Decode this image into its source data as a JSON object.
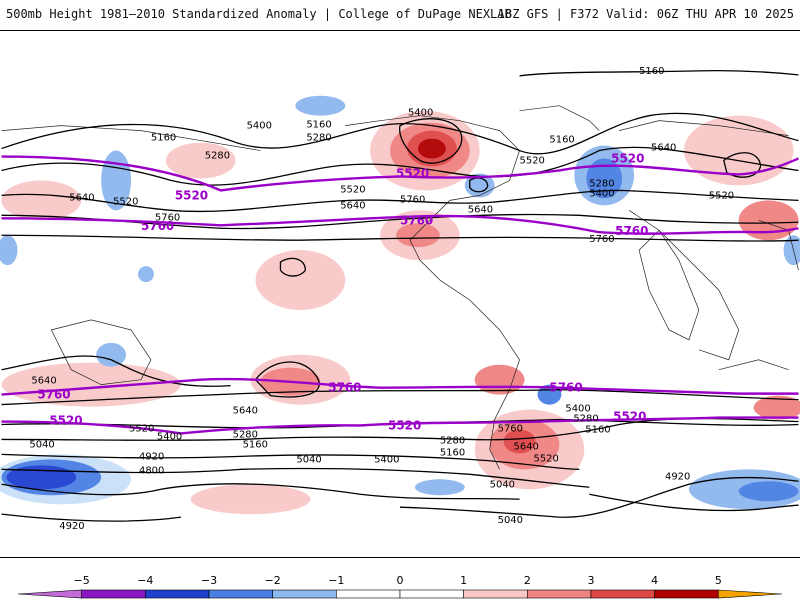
{
  "header": {
    "left_title": "500mb Height 1981–2010 Standardized Anomaly | College of DuPage NEXLAB",
    "right_title": "18Z GFS | F372 Valid: 06Z THU APR 10 2025"
  },
  "map": {
    "projection": "global-cylindrical",
    "contour_unit": "dam",
    "black_contour_labels": [
      "5160",
      "5280",
      "5400",
      "5520",
      "5640",
      "5760",
      "5040",
      "4920",
      "4800"
    ],
    "highlight_contours": [
      "5520",
      "5760"
    ],
    "highlight_color": "#9b00c9",
    "anomaly_colors": {
      "pos_1": "#f9c8c8",
      "pos_2": "#f08282",
      "pos_3": "#e04747",
      "pos_4": "#b00000",
      "pos_5": "#f6a300",
      "neg_1": "#c9e0f8",
      "neg_2": "#8db7ef",
      "neg_3": "#4a7fe3",
      "neg_4": "#1f3fcf",
      "neg_5": "#8c17c5"
    }
  },
  "colorbar": {
    "ticks": [
      "−5",
      "−4",
      "−3",
      "−2",
      "−1",
      "0",
      "1",
      "2",
      "3",
      "4",
      "5"
    ],
    "colors": [
      "#c36bd8",
      "#8c17c5",
      "#1f3fcf",
      "#4a7fe3",
      "#8db7ef",
      "#ffffff",
      "#ffffff",
      "#f9c8c8",
      "#f08282",
      "#e04747",
      "#b00000",
      "#f6a300"
    ]
  }
}
